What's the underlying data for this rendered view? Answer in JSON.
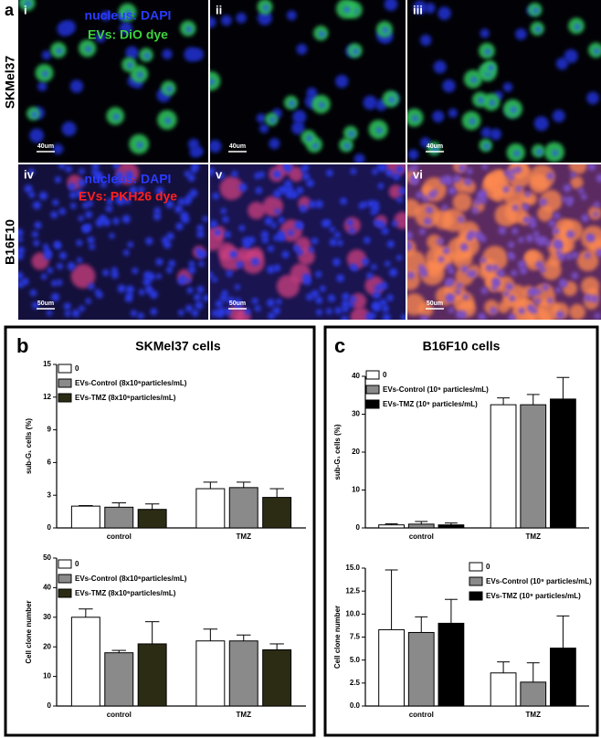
{
  "panel_a": {
    "label": "a",
    "rows": [
      "SKMel37",
      "B16F10"
    ],
    "stains": [
      {
        "nucleus": "nucleus: DAPI",
        "evs": "EVs: DiO dye"
      },
      {
        "nucleus": "nucleus: DAPI",
        "evs": "EVs: PKH26 dye"
      }
    ],
    "images": [
      {
        "label": "i",
        "scale": "40um"
      },
      {
        "label": "ii",
        "scale": "40um"
      },
      {
        "label": "iii",
        "scale": "40um"
      },
      {
        "label": "iv",
        "scale": "50um"
      },
      {
        "label": "v",
        "scale": "50um"
      },
      {
        "label": "vi",
        "scale": "50um"
      }
    ]
  },
  "panel_b": {
    "label": "b",
    "title": "SKMel37 cells"
  },
  "panel_c": {
    "label": "c",
    "title": "B16F10 cells"
  },
  "chart_data": [
    {
      "type": "bar",
      "ylabel": "sub-G₁ cells (%)",
      "categories": [
        "control",
        "TMZ"
      ],
      "ylim": [
        0,
        15
      ],
      "yticks": [
        0,
        3,
        6,
        9,
        12,
        15
      ],
      "series": [
        {
          "name": "0",
          "color": "#ffffff",
          "values": [
            2.0,
            3.6
          ],
          "errors": [
            0.05,
            0.6
          ]
        },
        {
          "name": "EVs-Control (8x10⁶particles/mL)",
          "color": "#8a8a8a",
          "values": [
            1.9,
            3.7
          ],
          "errors": [
            0.4,
            0.5
          ]
        },
        {
          "name": "EVs-TMZ (8x10⁶particles/mL)",
          "color": "#2c2b14",
          "values": [
            1.7,
            2.8
          ],
          "errors": [
            0.5,
            0.8
          ]
        }
      ]
    },
    {
      "type": "bar",
      "ylabel": "Cell clone number",
      "categories": [
        "control",
        "TMZ"
      ],
      "ylim": [
        0,
        50
      ],
      "yticks": [
        0,
        10,
        20,
        30,
        40,
        50
      ],
      "series": [
        {
          "name": "0",
          "color": "#ffffff",
          "values": [
            30,
            22
          ],
          "errors": [
            2.8,
            4
          ]
        },
        {
          "name": "EVs-Control (8x10⁶particles/mL)",
          "color": "#8a8a8a",
          "values": [
            18,
            22
          ],
          "errors": [
            0.8,
            2
          ]
        },
        {
          "name": "EVs-TMZ (8x10⁶particles/mL)",
          "color": "#2c2b14",
          "values": [
            21,
            19
          ],
          "errors": [
            7.5,
            2
          ]
        }
      ]
    },
    {
      "type": "bar",
      "ylabel": "sub-G₁ cells (%)",
      "categories": [
        "control",
        "TMZ"
      ],
      "ylim": [
        0,
        40
      ],
      "yticks": [
        0,
        10,
        20,
        30,
        40
      ],
      "series": [
        {
          "name": "0",
          "color": "#ffffff",
          "values": [
            0.8,
            32.5
          ],
          "errors": [
            0.3,
            1.8
          ]
        },
        {
          "name": "EVs-Control (10⁹ particles/mL)",
          "color": "#8a8a8a",
          "values": [
            1.0,
            32.5
          ],
          "errors": [
            0.7,
            2.7
          ]
        },
        {
          "name": "EVs-TMZ (10⁹ particles/mL)",
          "color": "#000000",
          "values": [
            0.8,
            34
          ],
          "errors": [
            0.5,
            5.7
          ]
        }
      ]
    },
    {
      "type": "bar",
      "ylabel": "Cell clone number",
      "categories": [
        "control",
        "TMZ"
      ],
      "ylim": [
        0,
        15
      ],
      "yticks": [
        {
          "value": 0,
          "label": "0.0"
        },
        {
          "value": 2.5,
          "label": "2.5"
        },
        {
          "value": 5,
          "label": "5.0"
        },
        {
          "value": 7.5,
          "label": "7.5"
        },
        {
          "value": 10,
          "label": "10.0"
        },
        {
          "value": 12.5,
          "label": "12.5"
        },
        {
          "value": 15,
          "label": "15.0"
        }
      ],
      "series": [
        {
          "name": "0",
          "color": "#ffffff",
          "values": [
            8.3,
            3.6
          ],
          "errors": [
            6.5,
            1.2
          ]
        },
        {
          "name": "EVs-Control (10⁹ particles/mL)",
          "color": "#8a8a8a",
          "values": [
            8.0,
            2.6
          ],
          "errors": [
            1.7,
            2.1
          ]
        },
        {
          "name": "EVs-TMZ (10⁹ particles/mL)",
          "color": "#000000",
          "values": [
            9.0,
            6.3
          ],
          "errors": [
            2.6,
            3.5
          ]
        }
      ]
    }
  ]
}
